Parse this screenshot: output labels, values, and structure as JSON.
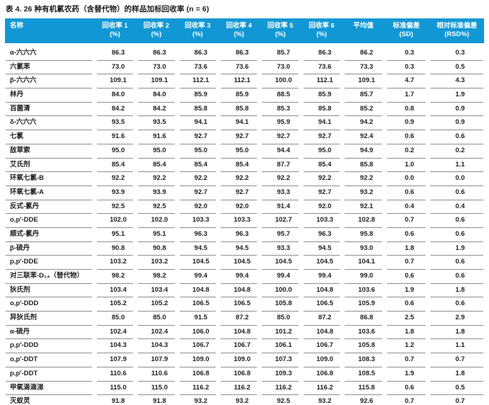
{
  "page_title": "表 4. 26 种有机氯农药（含替代物）的样品加标回收率 (n = 6)",
  "colors": {
    "header_bg": "#1297d5",
    "header_text": "#ffffff",
    "row_line": "#8e8e8e",
    "body_text": "#222222"
  },
  "table": {
    "columns": [
      {
        "label": "名称",
        "sub": ""
      },
      {
        "label": "回收率 1",
        "sub": "(%)"
      },
      {
        "label": "回收率 2",
        "sub": "(%)"
      },
      {
        "label": "回收率 3",
        "sub": "(%)"
      },
      {
        "label": "回收率 4",
        "sub": "(%)"
      },
      {
        "label": "回收率 5",
        "sub": "(%)"
      },
      {
        "label": "回收率 6",
        "sub": "(%)"
      },
      {
        "label": "平均值",
        "sub": ""
      },
      {
        "label": "标准偏差",
        "sub": "(SD)"
      },
      {
        "label": "相对标准偏差",
        "sub": "(RSD%)"
      }
    ],
    "rows": [
      {
        "name": "α-六六六",
        "values": [
          "86.3",
          "86.3",
          "86.3",
          "86.3",
          "85.7",
          "86.3",
          "86.2",
          "0.3",
          "0.3"
        ]
      },
      {
        "name": "六氯苯",
        "values": [
          "73.0",
          "73.0",
          "73.6",
          "73.6",
          "73.0",
          "73.6",
          "73.3",
          "0.3",
          "0.5"
        ]
      },
      {
        "name": "β-六六六",
        "values": [
          "109.1",
          "109.1",
          "112.1",
          "112.1",
          "100.0",
          "112.1",
          "109.1",
          "4.7",
          "4.3"
        ]
      },
      {
        "name": "林丹",
        "values": [
          "84.0",
          "84.0",
          "85.9",
          "85.9",
          "88.5",
          "85.9",
          "85.7",
          "1.7",
          "1.9"
        ]
      },
      {
        "name": "百菌清",
        "values": [
          "84.2",
          "84.2",
          "85.8",
          "85.8",
          "85.3",
          "85.8",
          "85.2",
          "0.8",
          "0.9"
        ]
      },
      {
        "name": "δ-六六六",
        "values": [
          "93.5",
          "93.5",
          "94.1",
          "94.1",
          "95.9",
          "94.1",
          "94.2",
          "0.9",
          "0.9"
        ]
      },
      {
        "name": "七氯",
        "values": [
          "91.6",
          "91.6",
          "92.7",
          "92.7",
          "92.7",
          "92.7",
          "92.4",
          "0.6",
          "0.6"
        ]
      },
      {
        "name": "敌草索",
        "values": [
          "95.0",
          "95.0",
          "95.0",
          "95.0",
          "94.4",
          "95.0",
          "94.9",
          "0.2",
          "0.2"
        ]
      },
      {
        "name": "艾氏剂",
        "values": [
          "85.4",
          "85.4",
          "85.4",
          "85.4",
          "87.7",
          "85.4",
          "85.8",
          "1.0",
          "1.1"
        ]
      },
      {
        "name": "环氧七氯-B",
        "values": [
          "92.2",
          "92.2",
          "92.2",
          "92.2",
          "92.2",
          "92.2",
          "92.2",
          "0.0",
          "0.0"
        ]
      },
      {
        "name": "环氧七氯-A",
        "values": [
          "93.9",
          "93.9",
          "92.7",
          "92.7",
          "93.3",
          "92.7",
          "93.2",
          "0.6",
          "0.6"
        ]
      },
      {
        "name": "反式-氯丹",
        "values": [
          "92.5",
          "92.5",
          "92.0",
          "92.0",
          "91.4",
          "92.0",
          "92.1",
          "0.4",
          "0.4"
        ]
      },
      {
        "name": "o,p′-DDE",
        "values": [
          "102.0",
          "102.0",
          "103.3",
          "103.3",
          "102.7",
          "103.3",
          "102.8",
          "0.7",
          "0.6"
        ]
      },
      {
        "name": "顺式-氯丹",
        "values": [
          "95.1",
          "95.1",
          "96.3",
          "96.3",
          "95.7",
          "96.3",
          "95.8",
          "0.6",
          "0.6"
        ]
      },
      {
        "name": "β-硫丹",
        "values": [
          "90.8",
          "90.8",
          "94.5",
          "94.5",
          "93.3",
          "94.5",
          "93.0",
          "1.8",
          "1.9"
        ]
      },
      {
        "name": "p,p′-DDE",
        "values": [
          "103.2",
          "103.2",
          "104.5",
          "104.5",
          "104.5",
          "104.5",
          "104.1",
          "0.7",
          "0.6"
        ]
      },
      {
        "name": "对三联苯-D₁₄（替代物）",
        "values": [
          "98.2",
          "98.2",
          "99.4",
          "99.4",
          "99.4",
          "99.4",
          "99.0",
          "0.6",
          "0.6"
        ]
      },
      {
        "name": "狄氏剂",
        "values": [
          "103.4",
          "103.4",
          "104.8",
          "104.8",
          "100.0",
          "104.8",
          "103.6",
          "1.9",
          "1.8"
        ]
      },
      {
        "name": "o,p′-DDD",
        "values": [
          "105.2",
          "105.2",
          "106.5",
          "106.5",
          "105.8",
          "106.5",
          "105.9",
          "0.6",
          "0.6"
        ]
      },
      {
        "name": "异狄氏剂",
        "values": [
          "85.0",
          "85.0",
          "91.5",
          "87.2",
          "85.0",
          "87.2",
          "86.8",
          "2.5",
          "2.9"
        ]
      },
      {
        "name": "α-硫丹",
        "values": [
          "102.4",
          "102.4",
          "106.0",
          "104.8",
          "101.2",
          "104.8",
          "103.6",
          "1.8",
          "1.8"
        ]
      },
      {
        "name": "p,p′-DDD",
        "values": [
          "104.3",
          "104.3",
          "106.7",
          "106.7",
          "106.1",
          "106.7",
          "105.8",
          "1.2",
          "1.1"
        ]
      },
      {
        "name": "o,p′-DDT",
        "values": [
          "107.9",
          "107.9",
          "109.0",
          "109.0",
          "107.3",
          "109.0",
          "108.3",
          "0.7",
          "0.7"
        ]
      },
      {
        "name": "p,p′-DDT",
        "values": [
          "110.6",
          "110.6",
          "106.8",
          "106.8",
          "109.3",
          "106.8",
          "108.5",
          "1.9",
          "1.8"
        ]
      },
      {
        "name": "甲氧滴滴涕",
        "values": [
          "115.0",
          "115.0",
          "116.2",
          "116.2",
          "116.2",
          "116.2",
          "115.8",
          "0.6",
          "0.5"
        ]
      },
      {
        "name": "灭蚁灵",
        "values": [
          "91.8",
          "91.8",
          "93.2",
          "93.2",
          "92.5",
          "93.2",
          "92.6",
          "0.7",
          "0.7"
        ]
      }
    ]
  }
}
